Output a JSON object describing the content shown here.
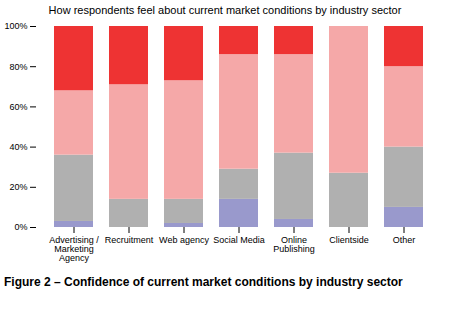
{
  "chart_data": {
    "type": "bar",
    "stacked": true,
    "title": "How respondents feel about current market conditions by industry sector",
    "caption": "Figure 2 – Confidence of current market conditions by industry sector",
    "categories": [
      "Advertising /\nMarketing\nAgency",
      "Recruitment",
      "Web agency",
      "Social Media",
      "Online\nPublishing",
      "Clientside",
      "Other"
    ],
    "series": [
      {
        "color": "#9999cc",
        "values": [
          3,
          0,
          2,
          14,
          4,
          0,
          10
        ]
      },
      {
        "color": "#b0b0b0",
        "values": [
          33,
          14,
          12,
          15,
          33,
          27,
          30
        ]
      },
      {
        "color": "#f5a8a8",
        "values": [
          32,
          57,
          59,
          57,
          49,
          73,
          40
        ]
      },
      {
        "color": "#ee3333",
        "values": [
          32,
          29,
          27,
          14,
          14,
          0,
          20
        ]
      }
    ],
    "ylim": [
      0,
      100
    ],
    "yticks": [
      {
        "value": 0,
        "label": "0%"
      },
      {
        "value": 20,
        "label": "20%"
      },
      {
        "value": 40,
        "label": "40%"
      },
      {
        "value": 60,
        "label": "60%"
      },
      {
        "value": 80,
        "label": "80%"
      },
      {
        "value": 100,
        "label": "100%"
      }
    ],
    "grid": false
  }
}
